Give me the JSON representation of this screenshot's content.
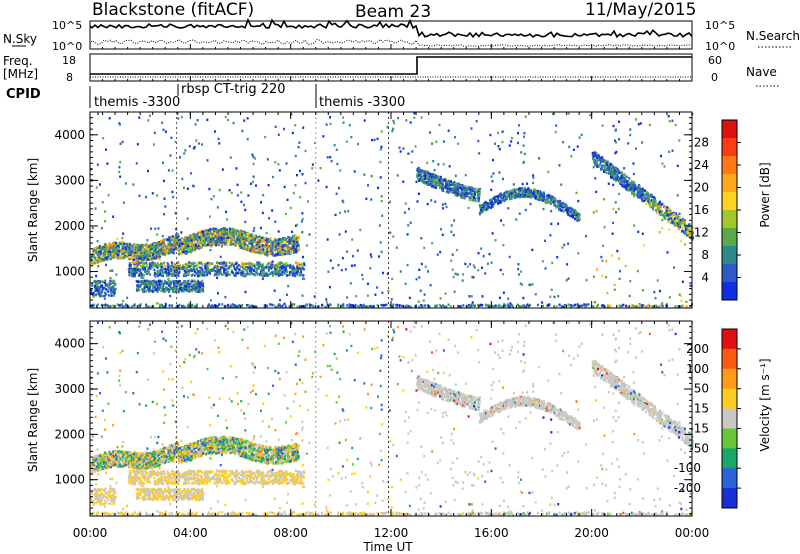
{
  "header": {
    "radar": "Blackstone (fitACF)",
    "beam": "Beam 23",
    "date": "11/May/2015"
  },
  "panels": {
    "nsky": {
      "label": "N.Sky",
      "right_label": "N.Search",
      "left_ticks": [
        "10^5",
        "10^0"
      ],
      "right_ticks": [
        "10^5",
        "10^0"
      ]
    },
    "freq": {
      "label": "Freq.",
      "unit": "[MHz]",
      "right_label": "Nave",
      "left_ticks": [
        "18",
        "8"
      ],
      "right_ticks": [
        "60",
        "0"
      ]
    },
    "cpid": {
      "label": "CPID",
      "segments": [
        {
          "start_hour": 0.0,
          "label": "themis -3300"
        },
        {
          "start_hour": 3.5,
          "label": "rbsp CT-trig 220"
        },
        {
          "start_hour": 9.0,
          "label": "themis -3300"
        }
      ]
    }
  },
  "chart_data": [
    {
      "type": "heatmap",
      "name": "power",
      "ylabel": "Slant Range [km]",
      "colorbar_label": "Power [dB]",
      "colorbar_ticks": [
        "28",
        "24",
        "20",
        "16",
        "12",
        "8",
        "4"
      ],
      "colors": [
        "#1030e0",
        "#3058c8",
        "#2e8a8a",
        "#5aaa4a",
        "#a0c82a",
        "#ffd21e",
        "#ffa61a",
        "#ff7a14",
        "#ff3c10",
        "#e01010"
      ],
      "xlim": [
        0,
        24
      ],
      "ylim": [
        200,
        4500
      ],
      "yticks": [
        "4000",
        "3000",
        "2000",
        "1000"
      ],
      "ytick_values": [
        4000,
        3000,
        2000,
        1000
      ],
      "xticks": [
        "00:00",
        "04:00",
        "08:00",
        "12:00",
        "16:00",
        "20:00",
        "00:00"
      ],
      "xtick_values": [
        0,
        4,
        8,
        12,
        16,
        20,
        24
      ]
    },
    {
      "type": "heatmap",
      "name": "velocity",
      "ylabel": "Slant Range [km]",
      "xlabel": "Time UT",
      "colorbar_label": "Velocity [m s⁻¹]",
      "colorbar_ticks": [
        "200",
        "100",
        "50",
        "15",
        "-15",
        "-50",
        "-100",
        "-200"
      ],
      "colors": [
        "#1a2ed8",
        "#2a64d8",
        "#1aa86a",
        "#66c83a",
        "#c8c8c4",
        "#ffcc22",
        "#ff9a1a",
        "#ff5a14",
        "#e01010"
      ],
      "xlim": [
        0,
        24
      ],
      "ylim": [
        200,
        4500
      ],
      "yticks": [
        "4000",
        "3000",
        "2000",
        "1000"
      ],
      "ytick_values": [
        4000,
        3000,
        2000,
        1000
      ],
      "xticks": [
        "00:00",
        "04:00",
        "08:00",
        "12:00",
        "16:00",
        "20:00",
        "00:00"
      ],
      "xtick_values": [
        0,
        4,
        8,
        12,
        16,
        20,
        24
      ]
    }
  ]
}
